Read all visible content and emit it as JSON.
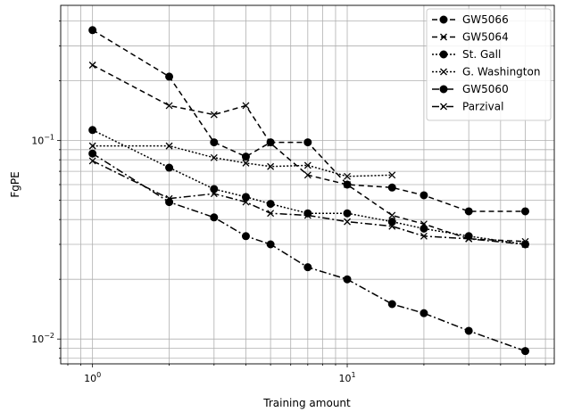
{
  "chart_data": {
    "type": "line",
    "xscale": "log",
    "yscale": "log",
    "xlabel": "Training amount",
    "ylabel": "FgPE",
    "xlim": [
      0.75,
      65
    ],
    "ylim": [
      0.0075,
      0.48
    ],
    "grid": true,
    "grid_minor": true,
    "legend_position": "top-right",
    "x_tick_labels": [
      {
        "value": 1,
        "base": "10",
        "exp": "0"
      },
      {
        "value": 10,
        "base": "10",
        "exp": "1"
      }
    ],
    "y_tick_labels": [
      {
        "value": 0.01,
        "base": "10",
        "exp": "−2"
      },
      {
        "value": 0.1,
        "base": "10",
        "exp": "−1"
      }
    ],
    "series": [
      {
        "name": "GW5066",
        "marker": "circle",
        "dash": "6,4",
        "color": "#000000",
        "x": [
          1,
          2,
          3,
          4,
          5,
          7,
          10,
          15,
          20,
          30,
          50
        ],
        "y": [
          0.36,
          0.21,
          0.098,
          0.083,
          0.098,
          0.098,
          0.06,
          0.058,
          0.053,
          0.044,
          0.044
        ]
      },
      {
        "name": "GW5064",
        "marker": "x",
        "dash": "6,4",
        "color": "#000000",
        "x": [
          1,
          2,
          3,
          4,
          5,
          7,
          10,
          15,
          20,
          30,
          50
        ],
        "y": [
          0.24,
          0.15,
          0.135,
          0.15,
          0.097,
          0.067,
          0.06,
          0.042,
          0.038,
          0.032,
          0.031
        ]
      },
      {
        "name": "St. Gall",
        "marker": "circle",
        "dash": "2,2",
        "color": "#000000",
        "x": [
          1,
          2,
          3,
          4,
          5,
          7,
          10,
          15,
          20,
          30,
          50
        ],
        "y": [
          0.113,
          0.073,
          0.057,
          0.052,
          0.048,
          0.043,
          0.043,
          0.039,
          0.036,
          0.033,
          0.03
        ]
      },
      {
        "name": "G. Washington",
        "marker": "x",
        "dash": "2,2",
        "color": "#000000",
        "x": [
          1,
          2,
          3,
          4,
          5,
          7,
          10,
          15
        ],
        "y": [
          0.094,
          0.094,
          0.082,
          0.077,
          0.074,
          0.075,
          0.066,
          0.067
        ]
      },
      {
        "name": "GW5060",
        "marker": "circle",
        "dash": "8,3,2,3",
        "color": "#000000",
        "x": [
          1,
          2,
          3,
          4,
          5,
          7,
          10,
          15,
          20,
          30,
          50
        ],
        "y": [
          0.086,
          0.049,
          0.041,
          0.033,
          0.03,
          0.023,
          0.02,
          0.015,
          0.0135,
          0.011,
          0.0087
        ]
      },
      {
        "name": "Parzival",
        "marker": "x",
        "dash": "8,3,2,3",
        "color": "#000000",
        "x": [
          1,
          2,
          3,
          4,
          5,
          7,
          10,
          15,
          20,
          30,
          50
        ],
        "y": [
          0.079,
          0.051,
          0.054,
          0.049,
          0.043,
          0.042,
          0.039,
          0.037,
          0.033,
          0.032,
          0.03
        ]
      }
    ]
  }
}
